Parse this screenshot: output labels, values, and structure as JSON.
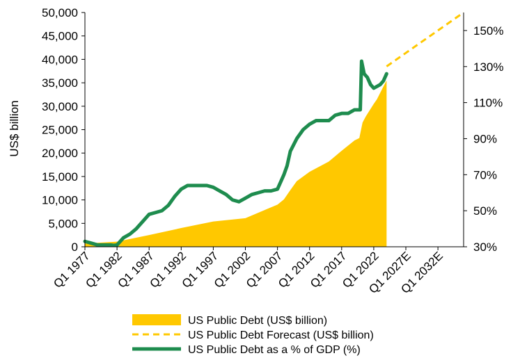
{
  "chart_data": {
    "type": "area",
    "ylabel": "US$ billion",
    "y_left": {
      "min": 0,
      "max": 50000,
      "step": 5000,
      "ticks": [
        "0",
        "5,000",
        "10,000",
        "15,000",
        "20,000",
        "25,000",
        "30,000",
        "35,000",
        "40,000",
        "45,000",
        "50,000"
      ]
    },
    "y_right": {
      "min": 30,
      "max": 160,
      "step": 20,
      "ticks": [
        "30%",
        "50%",
        "70%",
        "90%",
        "110%",
        "130%",
        "150%"
      ]
    },
    "x_axis": {
      "start_year": 1977,
      "end_year": 2036,
      "tick_years": [
        1977,
        1982,
        1987,
        1992,
        1997,
        2002,
        2007,
        2012,
        2017,
        2022,
        2027,
        2032
      ],
      "tick_labels": [
        "Q1 1977",
        "Q1 1982",
        "Q1 1987",
        "Q1 1992",
        "Q1 1997",
        "Q1 2002",
        "Q1 2007",
        "Q1 2012",
        "Q1 2017",
        "Q1 2022",
        "Q1 2027E",
        "Q1 2032E"
      ]
    },
    "legend": {
      "placement": "bottom",
      "items": [
        {
          "label": "US Public Debt (US$ billion)",
          "type": "area",
          "color": "#FFC800"
        },
        {
          "label": "US Public Debt Forecast (US$ billion)",
          "type": "dashed",
          "color": "#FFC800"
        },
        {
          "label": "US Public Debt as a % of GDP (%)",
          "type": "line",
          "color": "#1E8C4E"
        }
      ]
    },
    "series": [
      {
        "name": "US Public Debt (US$ billion)",
        "axis": "left",
        "kind": "area",
        "color": "#FFC800",
        "x": [
          1977,
          1982,
          1987,
          1992,
          1997,
          2002,
          2007,
          2008,
          2009,
          2010,
          2012,
          2015,
          2017,
          2019,
          2019.75,
          2020.25,
          2020.75,
          2022,
          2022.5,
          2023.5,
          2024
        ],
        "y": [
          700,
          1100,
          2500,
          4000,
          5400,
          6100,
          9000,
          10100,
          12100,
          14000,
          16000,
          18200,
          20500,
          22700,
          23200,
          26500,
          27800,
          30500,
          31500,
          34200,
          35500
        ]
      },
      {
        "name": "US Public Debt Forecast (US$ billion)",
        "axis": "left",
        "kind": "dashed",
        "color": "#FFC800",
        "x": [
          2024,
          2036
        ],
        "y": [
          38500,
          50000
        ]
      },
      {
        "name": "US Public Debt as a % of GDP (%)",
        "axis": "right",
        "kind": "line",
        "color": "#1E8C4E",
        "x": [
          1977,
          1978,
          1979,
          1980,
          1981,
          1981.5,
          1982,
          1983,
          1984,
          1985,
          1986,
          1987,
          1988,
          1989,
          1990,
          1991,
          1992,
          1993,
          1994,
          1995,
          1996,
          1997,
          1998,
          1999,
          2000,
          2001,
          2002,
          2003,
          2004,
          2005,
          2006,
          2007,
          2008,
          2008.5,
          2009,
          2010,
          2011,
          2012,
          2013,
          2014,
          2015,
          2016,
          2017,
          2018,
          2019,
          2019.9,
          2020.1,
          2020.5,
          2021,
          2021.5,
          2022,
          2022.5,
          2023,
          2023.5,
          2024
        ],
        "y": [
          33,
          32,
          31,
          31,
          31,
          30.8,
          31,
          35,
          37,
          40,
          44,
          48,
          49,
          50,
          53,
          58,
          62,
          64,
          64,
          64,
          64,
          63,
          61,
          59,
          56,
          55,
          57,
          59,
          60,
          61,
          61,
          62,
          70,
          75,
          83,
          90,
          95,
          98,
          100,
          100,
          100,
          103,
          104,
          104,
          106,
          106,
          133,
          126,
          124,
          120,
          118,
          119,
          120,
          122,
          126
        ]
      }
    ]
  }
}
